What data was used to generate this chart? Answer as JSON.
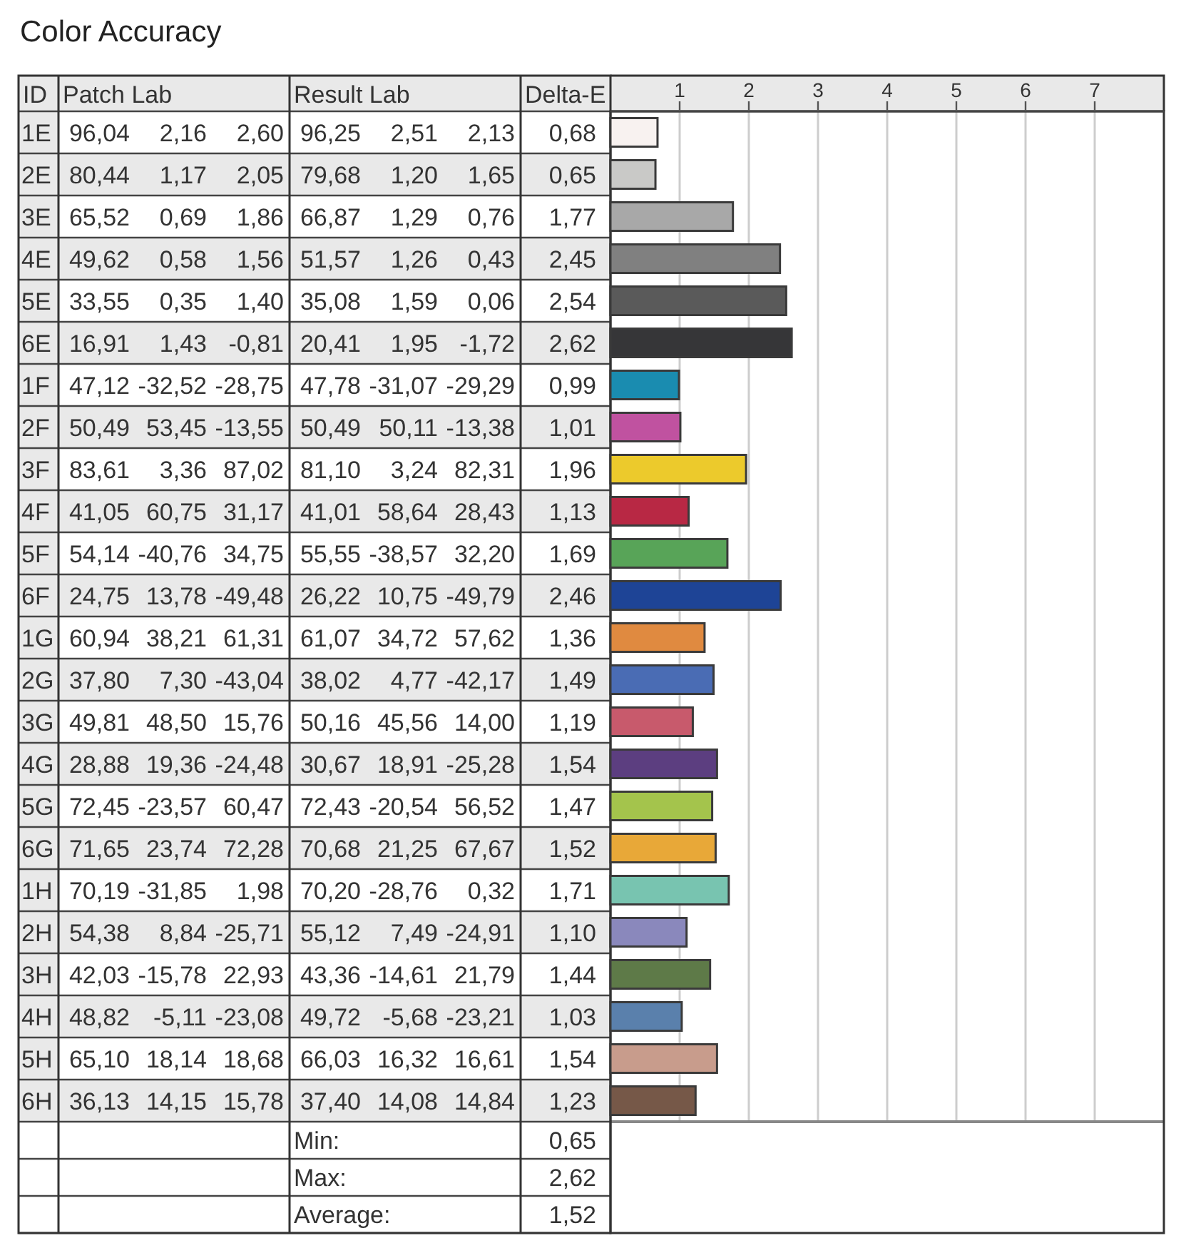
{
  "chart_data": {
    "type": "bar",
    "orientation": "horizontal",
    "title": "Color Accuracy",
    "categories": [
      "1E",
      "2E",
      "3E",
      "4E",
      "5E",
      "6E",
      "1F",
      "2F",
      "3F",
      "4F",
      "5F",
      "6F",
      "1G",
      "2G",
      "3G",
      "4G",
      "5G",
      "6G",
      "1H",
      "2H",
      "3H",
      "4H",
      "5H",
      "6H"
    ],
    "values": [
      0.68,
      0.65,
      1.77,
      2.45,
      2.54,
      2.62,
      0.99,
      1.01,
      1.96,
      1.13,
      1.69,
      2.46,
      1.36,
      1.49,
      1.19,
      1.54,
      1.47,
      1.52,
      1.71,
      1.1,
      1.44,
      1.03,
      1.54,
      1.23
    ],
    "colors": [
      "#f8f2f0",
      "#c9c9c7",
      "#a8a8a8",
      "#808080",
      "#5a5a5a",
      "#363638",
      "#1a8cb0",
      "#c052a0",
      "#ecca2c",
      "#b82844",
      "#58a458",
      "#1e4496",
      "#e08a40",
      "#4a6cb4",
      "#c85a6c",
      "#5c3e80",
      "#a4c44c",
      "#e8a838",
      "#78c4b0",
      "#8a88bc",
      "#5e7a48",
      "#5a80ac",
      "#c89c8c",
      "#765848"
    ],
    "value_labels": [
      "0,68",
      "0,65",
      "1,77",
      "2,45",
      "2,54",
      "2,62",
      "0,99",
      "1,01",
      "1,96",
      "1,13",
      "1,69",
      "2,46",
      "1,36",
      "1,49",
      "1,19",
      "1,54",
      "1,47",
      "1,52",
      "1,71",
      "1,10",
      "1,44",
      "1,03",
      "1,54",
      "1,23"
    ],
    "xlim": [
      0,
      8
    ],
    "x2lim": [
      0,
      8
    ],
    "x2ticks": [
      1,
      2,
      3,
      4,
      5,
      6,
      7
    ],
    "grid": "x",
    "annotations": [
      "ID",
      "Patch Lab",
      "Result Lab",
      "Delta-E",
      "96,04 2,16 2,60",
      "96,25 2,51 2,13",
      "80,44 1,17 2,05",
      "79,68 1,20 1,65",
      "65,52 0,69 1,86",
      "66,87 1,29 0,76",
      "49,62 0,58 1,56",
      "51,57 1,26 0,43",
      "33,55 0,35 1,40",
      "35,08 1,59 0,06",
      "16,91 1,43 -0,81",
      "20,41 1,95 -1,72",
      "47,12 -32,52 -28,75",
      "47,78 -31,07 -29,29",
      "50,49 53,45 -13,55",
      "50,49 50,11 -13,38",
      "83,61 3,36 87,02",
      "81,10 3,24 82,31",
      "41,05 60,75 31,17",
      "41,01 58,64 28,43",
      "54,14 -40,76 34,75",
      "55,55 -38,57 32,20",
      "24,75 13,78 -49,48",
      "26,22 10,75 -49,79",
      "60,94 38,21 61,31",
      "61,07 34,72 57,62",
      "37,80 7,30 -43,04",
      "38,02 4,77 -42,17",
      "49,81 48,50 15,76",
      "50,16 45,56 14,00",
      "28,88 19,36 -24,48",
      "30,67 18,91 -25,28",
      "72,45 -23,57 60,47",
      "72,43 -20,54 56,52",
      "71,65 23,74 72,28",
      "70,68 21,25 67,67",
      "70,19 -31,85 1,98",
      "70,20 -28,76 0,32",
      "54,38 8,84 -25,71",
      "55,12 7,49 -24,91",
      "42,03 -15,78 22,93",
      "43,36 -14,61 21,79",
      "48,82 -5,11 -23,08",
      "49,72 -5,68 -23,21",
      "65,10 18,14 18,68",
      "66,03 16,32 16,61",
      "36,13 14,15 15,78",
      "37,40 14,08 14,84",
      "Min:",
      "0,65",
      "Max:",
      "2,62",
      "Average:",
      "1,52"
    ]
  }
}
